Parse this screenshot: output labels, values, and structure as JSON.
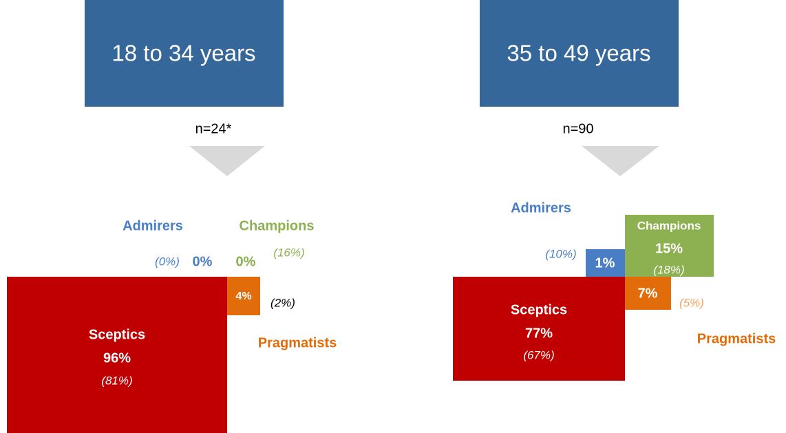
{
  "panels": [
    {
      "title": "18 to 34 years",
      "n": "n=24*",
      "admirers": {
        "name": "Admirers",
        "value": "0%",
        "benchmark": "(0%)"
      },
      "champions": {
        "name": "Champions",
        "value": "0%",
        "benchmark": "(16%)"
      },
      "sceptics": {
        "name": "Sceptics",
        "value": "96%",
        "benchmark": "(81%)"
      },
      "pragmatists": {
        "name": "Pragmatists",
        "value": "4%",
        "benchmark": "(2%)"
      }
    },
    {
      "title": "35 to 49 years",
      "n": "n=90",
      "admirers": {
        "name": "Admirers",
        "value": "1%",
        "benchmark": "(10%)"
      },
      "champions": {
        "name": "Champions",
        "value": "15%",
        "benchmark": "(18%)"
      },
      "sceptics": {
        "name": "Sceptics",
        "value": "77%",
        "benchmark": "(67%)"
      },
      "pragmatists": {
        "name": "Pragmatists",
        "value": "7%",
        "benchmark": "(5%)"
      }
    }
  ]
}
